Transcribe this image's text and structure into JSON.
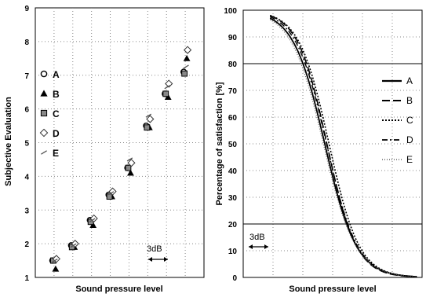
{
  "chart_data": [
    {
      "type": "scatter",
      "title": "",
      "xlabel": "Sound pressure level",
      "ylabel": "Subjective Evaluation",
      "ylim": [
        1,
        9
      ],
      "yticks": [
        "1",
        "2",
        "3",
        "4",
        "5",
        "6",
        "7",
        "8",
        "9"
      ],
      "xticks": [],
      "grid": true,
      "legend_position": "left, inside plot",
      "scale_annotation": "3dB",
      "level_steps": 9,
      "series": [
        {
          "name": "A",
          "marker": "circle",
          "values": [
            1.5,
            1.95,
            2.7,
            3.45,
            4.25,
            5.5,
            6.45,
            7.1
          ]
        },
        {
          "name": "B",
          "marker": "triangle",
          "values": [
            1.25,
            1.9,
            2.55,
            3.4,
            4.1,
            5.45,
            6.35,
            7.5
          ]
        },
        {
          "name": "C",
          "marker": "square",
          "values": [
            1.5,
            1.9,
            2.65,
            3.4,
            4.25,
            5.45,
            6.45,
            7.05
          ]
        },
        {
          "name": "D",
          "marker": "diamond",
          "values": [
            1.55,
            2.0,
            2.75,
            3.55,
            4.4,
            5.7,
            6.75,
            7.75
          ]
        },
        {
          "name": "E",
          "marker": "dash",
          "values": [
            1.5,
            1.95,
            2.7,
            3.5,
            4.5,
            5.8,
            6.65,
            7.25
          ]
        }
      ]
    },
    {
      "type": "line",
      "title": "",
      "xlabel": "Sound pressure level",
      "ylabel": "Percentage of satisfaction [%]",
      "ylim": [
        0,
        100
      ],
      "yticks": [
        "0",
        "10",
        "20",
        "30",
        "40",
        "50",
        "60",
        "70",
        "80",
        "90",
        "100"
      ],
      "xticks": [],
      "grid": true,
      "reference_lines": [
        20,
        80
      ],
      "legend_position": "right, inside plot",
      "scale_annotation": "3dB",
      "series": [
        {
          "name": "A",
          "dash": "solid",
          "center": 0.456,
          "width": 0.088
        },
        {
          "name": "B",
          "dash": "long-dash",
          "center": 0.468,
          "width": 0.082
        },
        {
          "name": "C",
          "dash": "dot",
          "center": 0.48,
          "width": 0.084
        },
        {
          "name": "D",
          "dash": "dash-dot",
          "center": 0.466,
          "width": 0.086
        },
        {
          "name": "E",
          "dash": "fine-dot",
          "center": 0.448,
          "width": 0.09
        }
      ]
    }
  ]
}
